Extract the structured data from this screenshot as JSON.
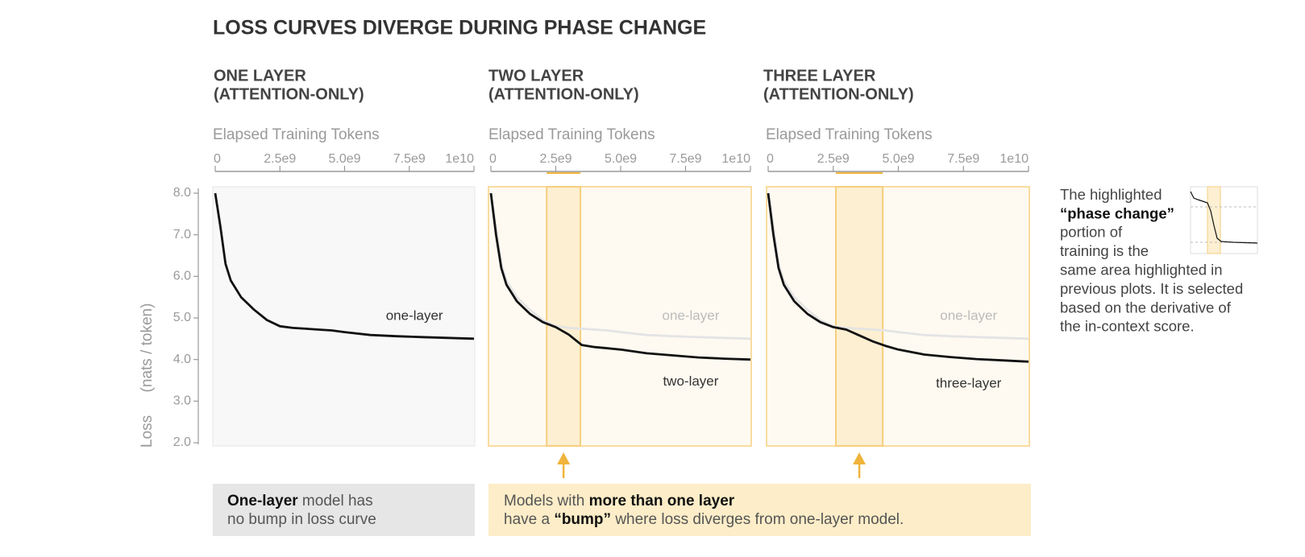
{
  "title": "LOSS CURVES DIVERGE DURING PHASE CHANGE",
  "chart_data": [
    {
      "type": "line",
      "title": [
        "ONE LAYER",
        "(ATTENTION-ONLY)"
      ],
      "xlabel": "Elapsed Training Tokens",
      "ylabel": "Loss",
      "yunit": "(nats / token)",
      "xlim": [
        0,
        10000000000.0
      ],
      "xticks": [
        0,
        {
          "value": 2500000000.0,
          "label": "2.5e9"
        },
        {
          "value": 5000000000.0,
          "label": "5.0e9"
        },
        {
          "value": 7500000000.0,
          "label": "7.5e9"
        },
        {
          "value": 10000000000.0,
          "label": "1e10"
        }
      ],
      "ylim": [
        2,
        8
      ],
      "yticks": [
        {
          "value": 2,
          "label": "2.0"
        },
        {
          "value": 3,
          "label": "3.0"
        },
        {
          "value": 4,
          "label": "4.0"
        },
        {
          "value": 5,
          "label": "5.0"
        },
        {
          "value": 6,
          "label": "6.0"
        },
        {
          "value": 7,
          "label": "7.0"
        },
        {
          "value": 8,
          "label": "8.0"
        }
      ],
      "x": [
        0,
        200000000.0,
        400000000.0,
        600000000.0,
        1000000000.0,
        1500000000.0,
        2000000000.0,
        2500000000.0,
        3000000000.0,
        3500000000.0,
        4000000000.0,
        4500000000.0,
        5000000000.0,
        6000000000.0,
        7000000000.0,
        8000000000.0,
        9000000000.0,
        10000000000.0
      ],
      "series": [
        {
          "name": "one-layer",
          "color": "#111111",
          "values": [
            8.0,
            7.2,
            6.3,
            5.9,
            5.5,
            5.2,
            4.95,
            4.8,
            4.76,
            4.74,
            4.72,
            4.7,
            4.66,
            4.59,
            4.56,
            4.54,
            4.52,
            4.5
          ]
        }
      ]
    },
    {
      "type": "line",
      "title": [
        "TWO LAYER",
        "(ATTENTION-ONLY)"
      ],
      "xlabel": "Elapsed Training Tokens",
      "xlim": [
        0,
        10000000000.0
      ],
      "xticks": [
        0,
        {
          "value": 2500000000.0,
          "label": "2.5e9"
        },
        {
          "value": 5000000000.0,
          "label": "5.0e9"
        },
        {
          "value": 7500000000.0,
          "label": "7.5e9"
        },
        {
          "value": 10000000000.0,
          "label": "1e10"
        }
      ],
      "ylim": [
        2,
        8
      ],
      "highlight": [
        2150000000.0,
        3450000000.0
      ],
      "x": [
        0,
        200000000.0,
        400000000.0,
        600000000.0,
        1000000000.0,
        1500000000.0,
        2000000000.0,
        2500000000.0,
        3000000000.0,
        3500000000.0,
        4000000000.0,
        4500000000.0,
        5000000000.0,
        6000000000.0,
        7000000000.0,
        8000000000.0,
        9000000000.0,
        10000000000.0
      ],
      "series": [
        {
          "name": "one-layer",
          "color": "#e4e4e4",
          "values": [
            8.0,
            7.2,
            6.3,
            5.9,
            5.5,
            5.2,
            4.95,
            4.8,
            4.76,
            4.74,
            4.72,
            4.7,
            4.66,
            4.59,
            4.56,
            4.54,
            4.52,
            4.5
          ]
        },
        {
          "name": "two-layer",
          "color": "#111111",
          "values": [
            8.0,
            7.0,
            6.2,
            5.8,
            5.4,
            5.1,
            4.9,
            4.78,
            4.6,
            4.35,
            4.3,
            4.27,
            4.24,
            4.15,
            4.1,
            4.05,
            4.02,
            4.0
          ]
        }
      ]
    },
    {
      "type": "line",
      "title": [
        "THREE LAYER",
        "(ATTENTION-ONLY)"
      ],
      "xlabel": "Elapsed Training Tokens",
      "xlim": [
        0,
        10000000000.0
      ],
      "xticks": [
        0,
        {
          "value": 2500000000.0,
          "label": "2.5e9"
        },
        {
          "value": 5000000000.0,
          "label": "5.0e9"
        },
        {
          "value": 7500000000.0,
          "label": "7.5e9"
        },
        {
          "value": 10000000000.0,
          "label": "1e10"
        }
      ],
      "ylim": [
        2,
        8
      ],
      "highlight": [
        2600000000.0,
        4400000000.0
      ],
      "x": [
        0,
        200000000.0,
        400000000.0,
        600000000.0,
        1000000000.0,
        1500000000.0,
        2000000000.0,
        2500000000.0,
        3000000000.0,
        3500000000.0,
        4000000000.0,
        4500000000.0,
        5000000000.0,
        6000000000.0,
        7000000000.0,
        8000000000.0,
        9000000000.0,
        10000000000.0
      ],
      "series": [
        {
          "name": "one-layer",
          "color": "#e4e4e4",
          "values": [
            8.0,
            7.2,
            6.3,
            5.9,
            5.5,
            5.2,
            4.95,
            4.8,
            4.76,
            4.74,
            4.72,
            4.7,
            4.66,
            4.59,
            4.56,
            4.54,
            4.52,
            4.5
          ]
        },
        {
          "name": "three-layer",
          "color": "#111111",
          "values": [
            8.0,
            7.0,
            6.2,
            5.8,
            5.4,
            5.1,
            4.9,
            4.78,
            4.72,
            4.58,
            4.44,
            4.33,
            4.24,
            4.12,
            4.06,
            4.01,
            3.98,
            3.95
          ]
        }
      ]
    }
  ],
  "note": [
    "The highlighted",
    "“phase change”",
    "portion of",
    "training is the",
    "same area highlighted in",
    "previous plots. It is selected",
    "based on the derivative of",
    "the in-context score."
  ],
  "captions": [
    {
      "bold": "One-layer",
      "line1": " model has",
      "line2": "no bump in loss curve"
    },
    {
      "line1": "Models with ",
      "bold1": "more than one layer",
      "line2": "have a ",
      "bold2": "“bump”",
      "line2_end": " where loss diverges from one-layer model."
    }
  ]
}
